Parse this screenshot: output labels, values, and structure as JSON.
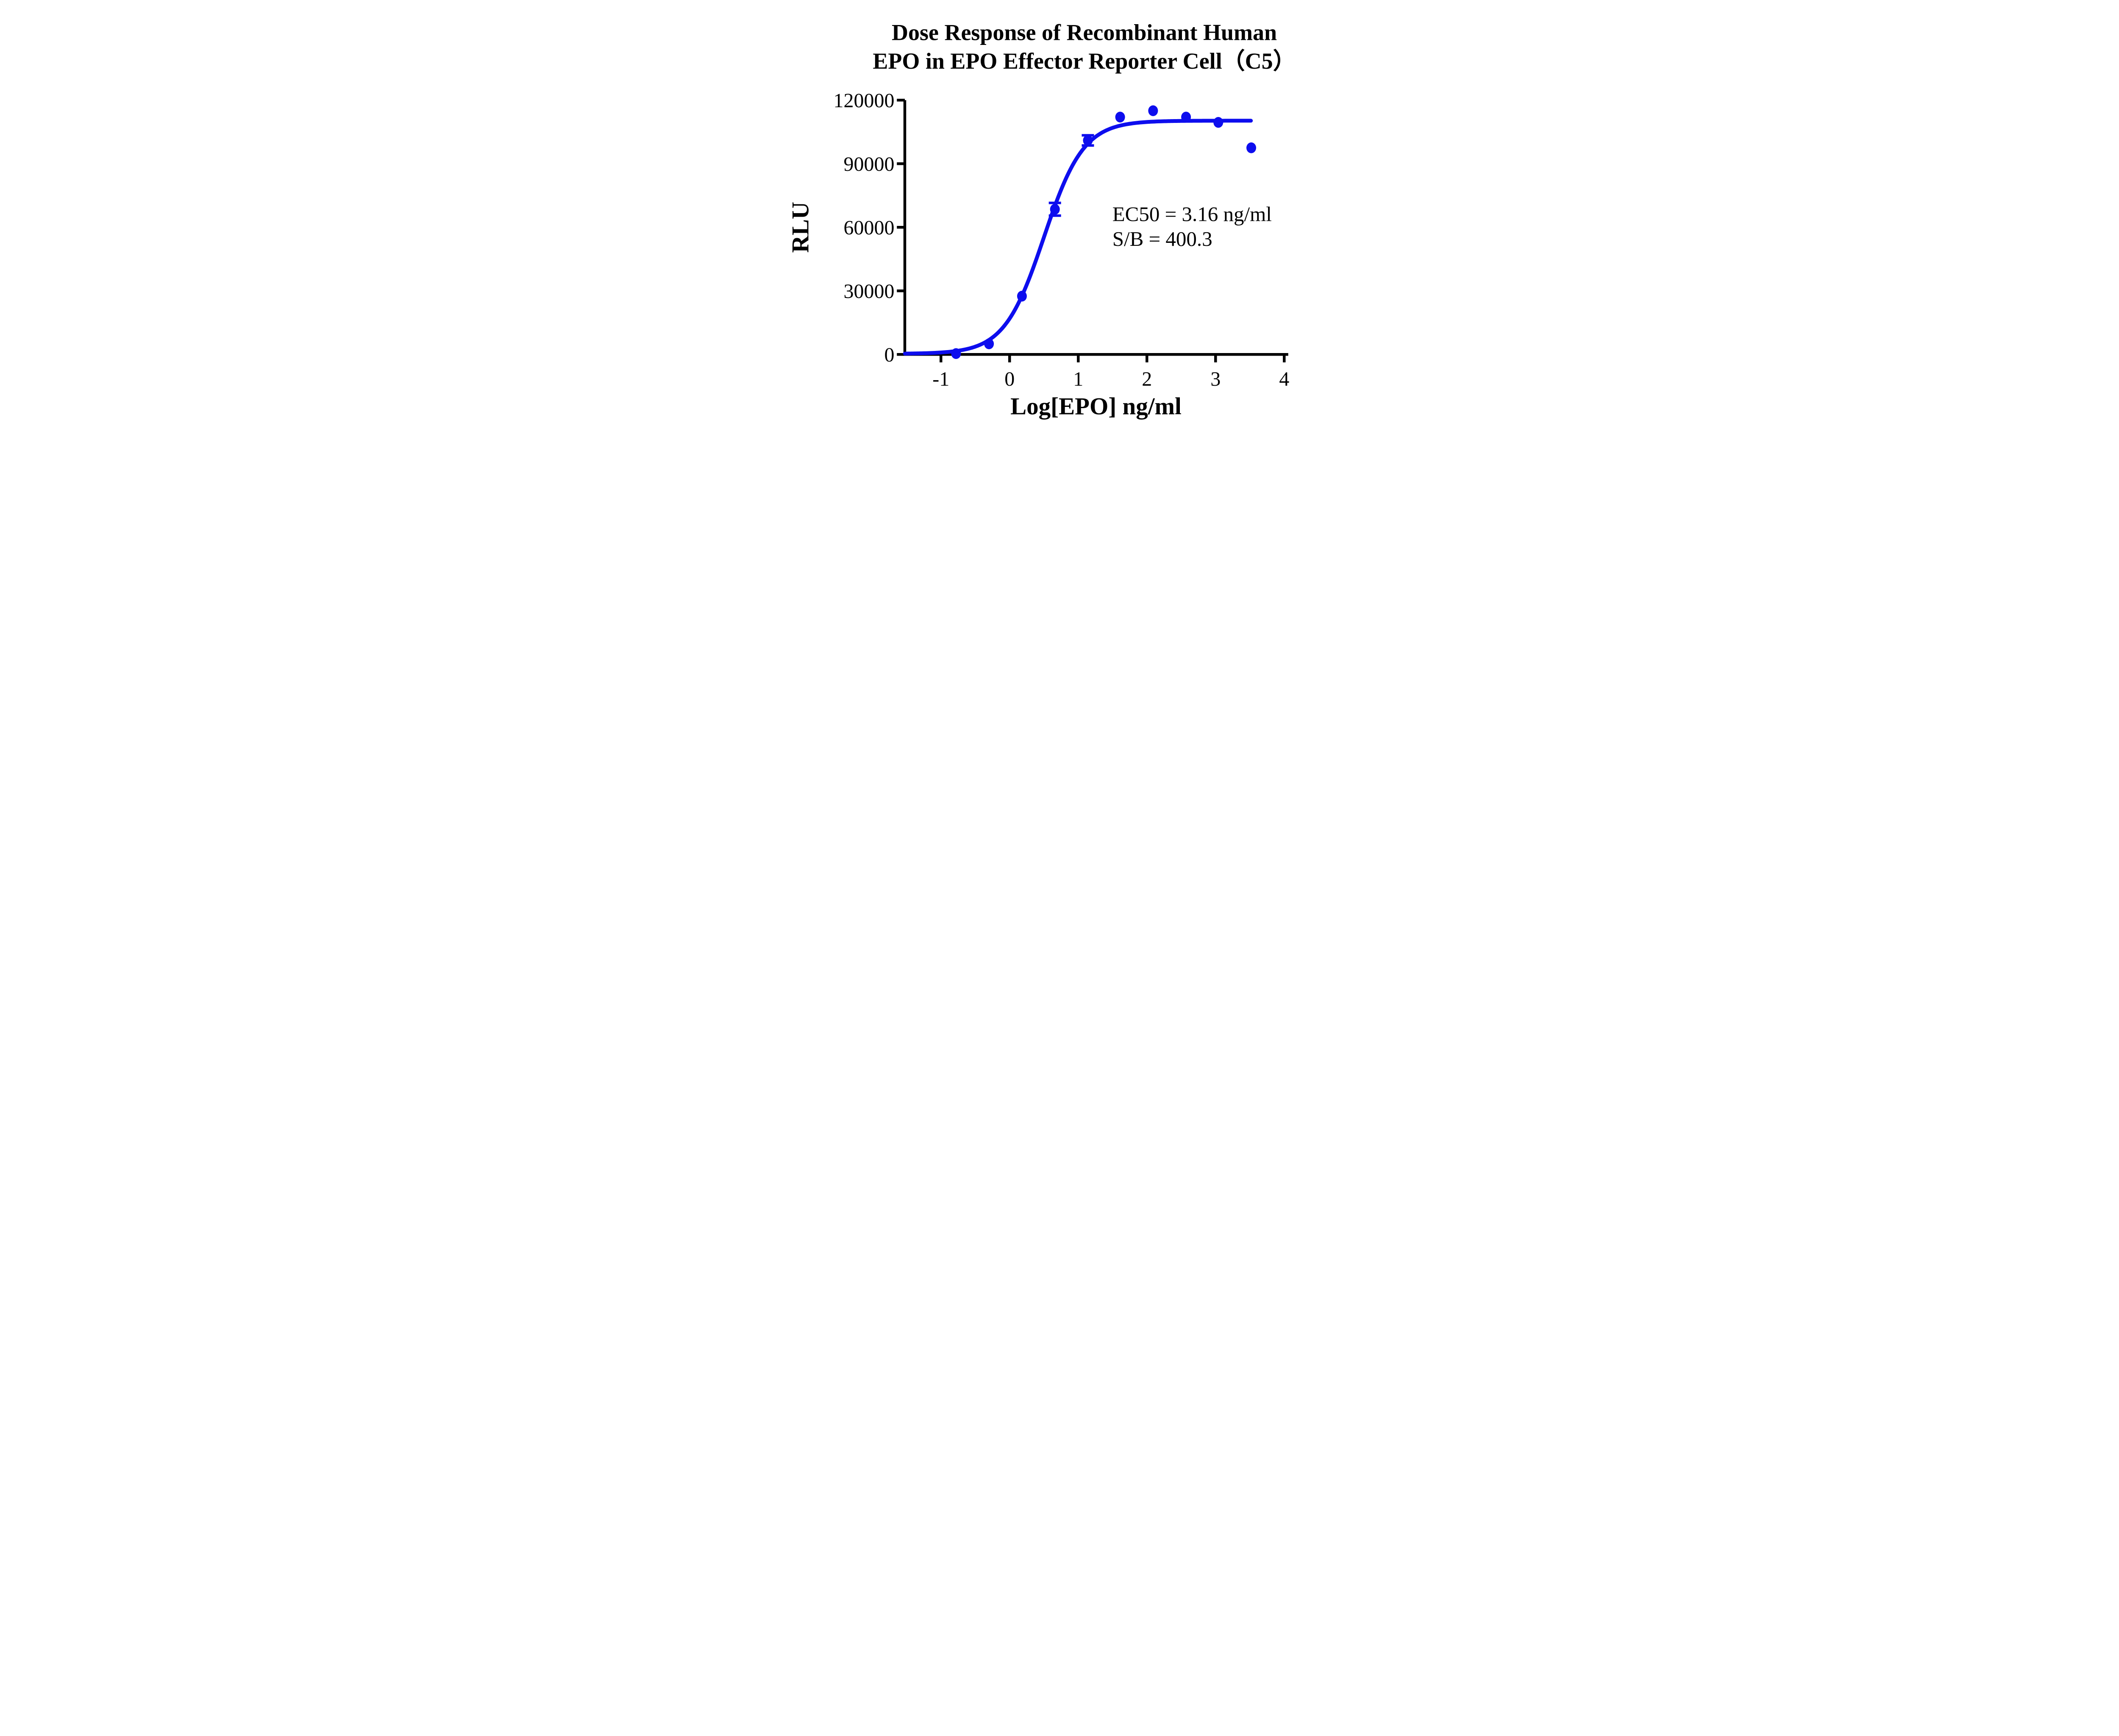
{
  "title": {
    "line1": "Dose Response of Recombinant Human",
    "line2": "EPO in EPO Effector Reporter Cell（C5）"
  },
  "annotation": {
    "ec50_text": "EC50 = 3.16 ng/ml",
    "sb_text": "S/B = 400.3"
  },
  "colors": {
    "series_blue": "#0d0dee",
    "axis_black": "#000000",
    "background": "#ffffff"
  },
  "chart_data": {
    "type": "scatter",
    "title": "Dose Response of Recombinant Human EPO in EPO Effector Reporter Cell（C5）",
    "xlabel": "Log[EPO] ng/ml",
    "ylabel": "RLU",
    "x_ticks": [
      -1,
      0,
      1,
      2,
      3,
      4
    ],
    "y_ticks": [
      0,
      30000,
      60000,
      90000,
      120000
    ],
    "xlim": [
      -1.53,
      4.0
    ],
    "ylim": [
      0,
      120000
    ],
    "grid": false,
    "legend": false,
    "points": [
      {
        "x": -0.78,
        "y": 400
      },
      {
        "x": -0.3,
        "y": 5000
      },
      {
        "x": 0.18,
        "y": 27500
      },
      {
        "x": 0.66,
        "y": 68500,
        "err": 3000
      },
      {
        "x": 1.14,
        "y": 101000,
        "err": 2400
      },
      {
        "x": 1.61,
        "y": 112000
      },
      {
        "x": 2.09,
        "y": 115000
      },
      {
        "x": 2.57,
        "y": 112000
      },
      {
        "x": 3.04,
        "y": 109500
      },
      {
        "x": 3.52,
        "y": 97500
      }
    ],
    "fit_curve": {
      "model": "four-parameter-logistic",
      "bottom": 300,
      "top": 110300,
      "logEC50": 0.5,
      "hillslope": 1.5,
      "draw_range": [
        -1.525,
        3.52
      ]
    },
    "ec50_ng_ml": 3.16,
    "s_over_b": 400.3
  }
}
